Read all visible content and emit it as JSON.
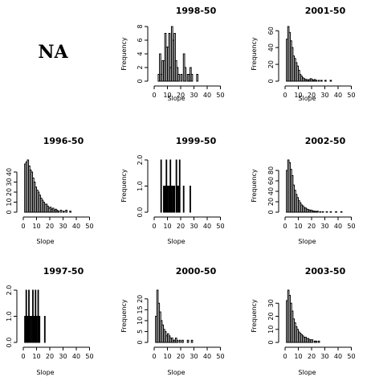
{
  "placeholder_text": "NA",
  "chart_data": [
    {
      "type": "bar",
      "title": "1998-50",
      "xlabel": "Slope",
      "ylabel": "Frequency",
      "xticks": [
        0,
        10,
        20,
        30,
        40,
        50
      ],
      "xlim": [
        0,
        60
      ],
      "yticks": [
        0,
        2,
        4,
        6,
        8
      ],
      "ylim": [
        0,
        8
      ],
      "bin_width": 1,
      "bins": [
        {
          "x": 3,
          "v": 1
        },
        {
          "x": 4,
          "v": 4
        },
        {
          "x": 5,
          "v": 1
        },
        {
          "x": 6,
          "v": 3
        },
        {
          "x": 7,
          "v": 3
        },
        {
          "x": 8,
          "v": 7
        },
        {
          "x": 9,
          "v": 5
        },
        {
          "x": 10,
          "v": 5
        },
        {
          "x": 11,
          "v": 7
        },
        {
          "x": 12,
          "v": 2
        },
        {
          "x": 13,
          "v": 8
        },
        {
          "x": 14,
          "v": 6
        },
        {
          "x": 15,
          "v": 7
        },
        {
          "x": 16,
          "v": 3
        },
        {
          "x": 17,
          "v": 2
        },
        {
          "x": 18,
          "v": 1
        },
        {
          "x": 20,
          "v": 1
        },
        {
          "x": 22,
          "v": 4
        },
        {
          "x": 23,
          "v": 2
        },
        {
          "x": 25,
          "v": 1
        },
        {
          "x": 26,
          "v": 1
        },
        {
          "x": 27,
          "v": 2
        },
        {
          "x": 28,
          "v": 1
        },
        {
          "x": 32,
          "v": 1
        }
      ]
    },
    {
      "type": "bar",
      "title": "2001-50",
      "xlabel": "Slope",
      "ylabel": "Frequency",
      "xticks": [
        0,
        10,
        20,
        30,
        40,
        50
      ],
      "xlim": [
        0,
        60
      ],
      "yticks": [
        0,
        20,
        40,
        60
      ],
      "ylim": [
        0,
        65
      ],
      "bin_width": 1,
      "bins": [
        {
          "x": 1,
          "v": 50
        },
        {
          "x": 2,
          "v": 65
        },
        {
          "x": 3,
          "v": 58
        },
        {
          "x": 4,
          "v": 48
        },
        {
          "x": 5,
          "v": 40
        },
        {
          "x": 6,
          "v": 30
        },
        {
          "x": 7,
          "v": 27
        },
        {
          "x": 8,
          "v": 22
        },
        {
          "x": 9,
          "v": 18
        },
        {
          "x": 10,
          "v": 13
        },
        {
          "x": 11,
          "v": 8
        },
        {
          "x": 12,
          "v": 6
        },
        {
          "x": 13,
          "v": 4
        },
        {
          "x": 14,
          "v": 3
        },
        {
          "x": 15,
          "v": 2
        },
        {
          "x": 16,
          "v": 2
        },
        {
          "x": 17,
          "v": 1
        },
        {
          "x": 18,
          "v": 2
        },
        {
          "x": 19,
          "v": 3
        },
        {
          "x": 20,
          "v": 2
        },
        {
          "x": 21,
          "v": 1
        },
        {
          "x": 22,
          "v": 2
        },
        {
          "x": 23,
          "v": 1
        },
        {
          "x": 25,
          "v": 1
        },
        {
          "x": 27,
          "v": 1
        },
        {
          "x": 30,
          "v": 1
        },
        {
          "x": 34,
          "v": 1
        }
      ]
    },
    {
      "type": "bar",
      "title": "1996-50",
      "xlabel": "Slope",
      "ylabel": "",
      "xticks": [
        0,
        10,
        20,
        30,
        40,
        50
      ],
      "xlim": [
        0,
        60
      ],
      "yticks": [
        0,
        10,
        20,
        30,
        40
      ],
      "ylim": [
        0,
        52
      ],
      "bin_width": 1,
      "bins": [
        {
          "x": 1,
          "v": 48
        },
        {
          "x": 2,
          "v": 50
        },
        {
          "x": 3,
          "v": 52
        },
        {
          "x": 4,
          "v": 46
        },
        {
          "x": 5,
          "v": 42
        },
        {
          "x": 6,
          "v": 40
        },
        {
          "x": 7,
          "v": 34
        },
        {
          "x": 8,
          "v": 30
        },
        {
          "x": 9,
          "v": 25
        },
        {
          "x": 10,
          "v": 22
        },
        {
          "x": 11,
          "v": 20
        },
        {
          "x": 12,
          "v": 17
        },
        {
          "x": 13,
          "v": 14
        },
        {
          "x": 14,
          "v": 12
        },
        {
          "x": 15,
          "v": 10
        },
        {
          "x": 16,
          "v": 8
        },
        {
          "x": 17,
          "v": 8
        },
        {
          "x": 18,
          "v": 6
        },
        {
          "x": 19,
          "v": 4
        },
        {
          "x": 20,
          "v": 5
        },
        {
          "x": 21,
          "v": 3
        },
        {
          "x": 22,
          "v": 4
        },
        {
          "x": 23,
          "v": 2
        },
        {
          "x": 24,
          "v": 3
        },
        {
          "x": 25,
          "v": 2
        },
        {
          "x": 26,
          "v": 1
        },
        {
          "x": 28,
          "v": 2
        },
        {
          "x": 30,
          "v": 1
        },
        {
          "x": 32,
          "v": 2
        },
        {
          "x": 35,
          "v": 1
        }
      ]
    },
    {
      "type": "bar",
      "title": "1999-50",
      "xlabel": "Slope",
      "ylabel": "Frequency",
      "xticks": [
        0,
        10,
        20,
        30,
        40,
        50
      ],
      "xlim": [
        0,
        60
      ],
      "yticks": [
        0.0,
        1.0,
        2.0
      ],
      "ylim": [
        0,
        2
      ],
      "bin_width": 0.5,
      "bins": [
        {
          "x": 5.0,
          "v": 2
        },
        {
          "x": 7.0,
          "v": 1
        },
        {
          "x": 7.5,
          "v": 1
        },
        {
          "x": 8.0,
          "v": 1
        },
        {
          "x": 8.5,
          "v": 1
        },
        {
          "x": 9.0,
          "v": 2
        },
        {
          "x": 9.5,
          "v": 1
        },
        {
          "x": 10.0,
          "v": 1
        },
        {
          "x": 11.0,
          "v": 1
        },
        {
          "x": 11.5,
          "v": 1
        },
        {
          "x": 12.0,
          "v": 2
        },
        {
          "x": 12.5,
          "v": 1
        },
        {
          "x": 13.0,
          "v": 1
        },
        {
          "x": 14.0,
          "v": 1
        },
        {
          "x": 14.5,
          "v": 1
        },
        {
          "x": 15.0,
          "v": 1
        },
        {
          "x": 16.5,
          "v": 2
        },
        {
          "x": 17.0,
          "v": 1
        },
        {
          "x": 18.0,
          "v": 1
        },
        {
          "x": 19.0,
          "v": 2
        },
        {
          "x": 22.0,
          "v": 1
        },
        {
          "x": 27.0,
          "v": 1
        }
      ]
    },
    {
      "type": "bar",
      "title": "2002-50",
      "xlabel": "Slope",
      "ylabel": "Frequency",
      "xticks": [
        0,
        10,
        20,
        30,
        40,
        50
      ],
      "xlim": [
        0,
        60
      ],
      "yticks": [
        0,
        20,
        40,
        60,
        80
      ],
      "ylim": [
        0,
        100
      ],
      "bin_width": 1,
      "bins": [
        {
          "x": 1,
          "v": 80
        },
        {
          "x": 2,
          "v": 100
        },
        {
          "x": 3,
          "v": 95
        },
        {
          "x": 4,
          "v": 82
        },
        {
          "x": 5,
          "v": 70
        },
        {
          "x": 6,
          "v": 52
        },
        {
          "x": 7,
          "v": 42
        },
        {
          "x": 8,
          "v": 34
        },
        {
          "x": 9,
          "v": 28
        },
        {
          "x": 10,
          "v": 22
        },
        {
          "x": 11,
          "v": 18
        },
        {
          "x": 12,
          "v": 14
        },
        {
          "x": 13,
          "v": 12
        },
        {
          "x": 14,
          "v": 9
        },
        {
          "x": 15,
          "v": 8
        },
        {
          "x": 16,
          "v": 6
        },
        {
          "x": 17,
          "v": 5
        },
        {
          "x": 18,
          "v": 4
        },
        {
          "x": 19,
          "v": 4
        },
        {
          "x": 20,
          "v": 3
        },
        {
          "x": 21,
          "v": 2
        },
        {
          "x": 22,
          "v": 2
        },
        {
          "x": 23,
          "v": 1
        },
        {
          "x": 24,
          "v": 2
        },
        {
          "x": 26,
          "v": 1
        },
        {
          "x": 28,
          "v": 1
        },
        {
          "x": 31,
          "v": 1
        },
        {
          "x": 34,
          "v": 1
        },
        {
          "x": 38,
          "v": 1
        },
        {
          "x": 42,
          "v": 1
        }
      ]
    },
    {
      "type": "bar",
      "title": "1997-50",
      "xlabel": "Slope",
      "ylabel": "",
      "xticks": [
        0,
        10,
        20,
        30,
        40,
        50
      ],
      "xlim": [
        0,
        60
      ],
      "yticks": [
        0.0,
        1.0,
        2.0
      ],
      "ylim": [
        0,
        2
      ],
      "bin_width": 0.5,
      "bins": [
        {
          "x": 1.0,
          "v": 1
        },
        {
          "x": 2.0,
          "v": 2
        },
        {
          "x": 2.5,
          "v": 1
        },
        {
          "x": 3.0,
          "v": 1
        },
        {
          "x": 3.5,
          "v": 1
        },
        {
          "x": 4.0,
          "v": 2
        },
        {
          "x": 4.5,
          "v": 1
        },
        {
          "x": 5.5,
          "v": 1
        },
        {
          "x": 6.5,
          "v": 1
        },
        {
          "x": 7.0,
          "v": 2
        },
        {
          "x": 7.5,
          "v": 1
        },
        {
          "x": 8.0,
          "v": 1
        },
        {
          "x": 9.0,
          "v": 2
        },
        {
          "x": 9.5,
          "v": 1
        },
        {
          "x": 10.0,
          "v": 1
        },
        {
          "x": 11.0,
          "v": 2
        },
        {
          "x": 11.5,
          "v": 1
        },
        {
          "x": 12.0,
          "v": 1
        },
        {
          "x": 16.0,
          "v": 1
        }
      ]
    },
    {
      "type": "bar",
      "title": "2000-50",
      "xlabel": "Slope",
      "ylabel": "Frequency",
      "xticks": [
        0,
        10,
        20,
        30,
        40,
        50
      ],
      "xlim": [
        0,
        60
      ],
      "yticks": [
        0,
        5,
        10,
        15,
        20
      ],
      "ylim": [
        0,
        24
      ],
      "bin_width": 1,
      "bins": [
        {
          "x": 1,
          "v": 12
        },
        {
          "x": 2,
          "v": 24
        },
        {
          "x": 3,
          "v": 18
        },
        {
          "x": 4,
          "v": 14
        },
        {
          "x": 5,
          "v": 10
        },
        {
          "x": 6,
          "v": 8
        },
        {
          "x": 7,
          "v": 6
        },
        {
          "x": 8,
          "v": 5
        },
        {
          "x": 9,
          "v": 3
        },
        {
          "x": 10,
          "v": 4
        },
        {
          "x": 11,
          "v": 3
        },
        {
          "x": 12,
          "v": 2
        },
        {
          "x": 13,
          "v": 2
        },
        {
          "x": 14,
          "v": 1
        },
        {
          "x": 15,
          "v": 1
        },
        {
          "x": 16,
          "v": 2
        },
        {
          "x": 17,
          "v": 1
        },
        {
          "x": 19,
          "v": 1
        },
        {
          "x": 21,
          "v": 1
        },
        {
          "x": 25,
          "v": 1
        },
        {
          "x": 28,
          "v": 1
        }
      ]
    },
    {
      "type": "bar",
      "title": "2003-50",
      "xlabel": "Slope",
      "ylabel": "Frequency",
      "xticks": [
        0,
        10,
        20,
        30,
        40,
        50
      ],
      "xlim": [
        0,
        60
      ],
      "yticks": [
        0,
        10,
        20,
        30
      ],
      "ylim": [
        0,
        40
      ],
      "bin_width": 1,
      "bins": [
        {
          "x": 1,
          "v": 32
        },
        {
          "x": 2,
          "v": 40
        },
        {
          "x": 3,
          "v": 36
        },
        {
          "x": 4,
          "v": 30
        },
        {
          "x": 5,
          "v": 24
        },
        {
          "x": 6,
          "v": 18
        },
        {
          "x": 7,
          "v": 15
        },
        {
          "x": 8,
          "v": 12
        },
        {
          "x": 9,
          "v": 10
        },
        {
          "x": 10,
          "v": 8
        },
        {
          "x": 11,
          "v": 7
        },
        {
          "x": 12,
          "v": 6
        },
        {
          "x": 13,
          "v": 5
        },
        {
          "x": 14,
          "v": 4
        },
        {
          "x": 15,
          "v": 4
        },
        {
          "x": 16,
          "v": 3
        },
        {
          "x": 17,
          "v": 3
        },
        {
          "x": 18,
          "v": 2
        },
        {
          "x": 19,
          "v": 2
        },
        {
          "x": 20,
          "v": 2
        },
        {
          "x": 22,
          "v": 1
        },
        {
          "x": 23,
          "v": 1
        },
        {
          "x": 25,
          "v": 1
        }
      ]
    }
  ]
}
